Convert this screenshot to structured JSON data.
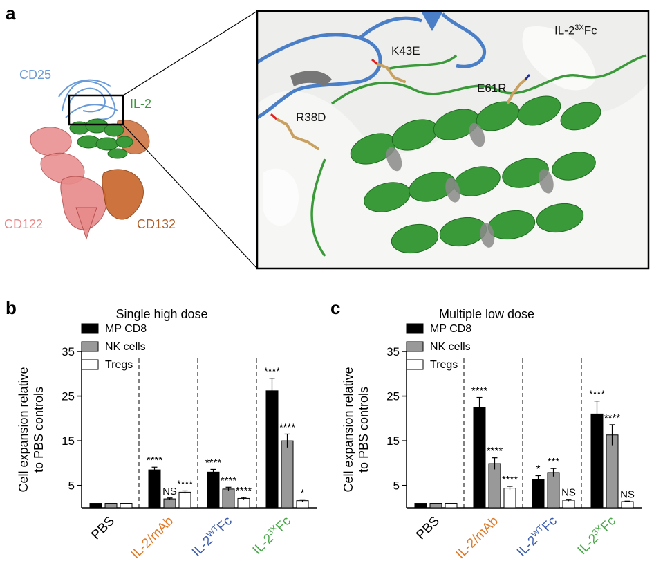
{
  "panel_a": {
    "letter": "a",
    "labels": {
      "cd25": "CD25",
      "il2": "IL-2",
      "cd122": "CD122",
      "cd132": "CD132",
      "construct_base": "IL-2",
      "construct_sup": "3X",
      "construct_suffix": "Fc",
      "k43e": "K43E",
      "e61r": "E61R",
      "r38d": "R38D"
    },
    "colors": {
      "cd25": "#6a9bd8",
      "il2": "#3a9a3a",
      "cd122": "#e88a8a",
      "cd132": "#c8642a",
      "residue": "#c8a060"
    }
  },
  "chart_data": [
    {
      "type": "bar",
      "letter": "b",
      "title": "Single high dose",
      "ylabel_line1": "Cell expansion relative",
      "ylabel_line2": "to PBS controls",
      "ylim": [
        0,
        35
      ],
      "yticks": [
        5,
        15,
        25,
        35
      ],
      "legend_position": "top-left",
      "categories": [
        {
          "base": "PBS",
          "sup": "",
          "suffix": "",
          "color": "#000000"
        },
        {
          "base": "IL-2/mAb",
          "sup": "",
          "suffix": "",
          "color": "#e07b28"
        },
        {
          "base": "IL-2",
          "sup": "WT",
          "suffix": "Fc",
          "color": "#3b5bab"
        },
        {
          "base": "IL-2",
          "sup": "3X",
          "suffix": "Fc",
          "color": "#4aa84a"
        }
      ],
      "series": [
        {
          "name": "MP CD8",
          "fill": "#000000",
          "values": [
            1.0,
            8.5,
            8.0,
            26.2
          ],
          "errors": [
            0,
            0.6,
            0.6,
            2.8
          ],
          "labels": [
            "",
            "****",
            "****",
            "****"
          ]
        },
        {
          "name": "NK cells",
          "fill": "#999999",
          "values": [
            1.0,
            2.0,
            4.2,
            15.0
          ],
          "errors": [
            0,
            0.2,
            0.4,
            1.5
          ],
          "labels": [
            "",
            "NS",
            "****",
            "****"
          ]
        },
        {
          "name": "Tregs",
          "fill": "#ffffff",
          "values": [
            1.0,
            3.5,
            2.1,
            1.6
          ],
          "errors": [
            0,
            0.3,
            0.2,
            0.2
          ],
          "labels": [
            "",
            "****",
            "****",
            "*"
          ]
        }
      ]
    },
    {
      "type": "bar",
      "letter": "c",
      "title": "Multiple low dose",
      "ylabel_line1": "Cell expansion relative",
      "ylabel_line2": "to PBS controls",
      "ylim": [
        0,
        35
      ],
      "yticks": [
        5,
        15,
        25,
        35
      ],
      "legend_position": "top-left",
      "categories": [
        {
          "base": "PBS",
          "sup": "",
          "suffix": "",
          "color": "#000000"
        },
        {
          "base": "IL-2/mAb",
          "sup": "",
          "suffix": "",
          "color": "#e07b28"
        },
        {
          "base": "IL-2",
          "sup": "WT",
          "suffix": "Fc",
          "color": "#3b5bab"
        },
        {
          "base": "IL-2",
          "sup": "3X",
          "suffix": "Fc",
          "color": "#4aa84a"
        }
      ],
      "series": [
        {
          "name": "MP CD8",
          "fill": "#000000",
          "values": [
            1.0,
            22.4,
            6.3,
            21.0
          ],
          "errors": [
            0,
            2.3,
            0.9,
            2.9
          ],
          "labels": [
            "",
            "****",
            "*",
            "****"
          ]
        },
        {
          "name": "NK cells",
          "fill": "#999999",
          "values": [
            1.0,
            9.9,
            7.9,
            16.3
          ],
          "errors": [
            0,
            1.3,
            0.9,
            2.3
          ],
          "labels": [
            "",
            "****",
            "***",
            "****"
          ]
        },
        {
          "name": "Tregs",
          "fill": "#ffffff",
          "values": [
            1.0,
            4.4,
            1.7,
            1.4
          ],
          "errors": [
            0,
            0.4,
            0.2,
            0.1
          ],
          "labels": [
            "",
            "****",
            "NS",
            "NS"
          ]
        }
      ]
    }
  ]
}
